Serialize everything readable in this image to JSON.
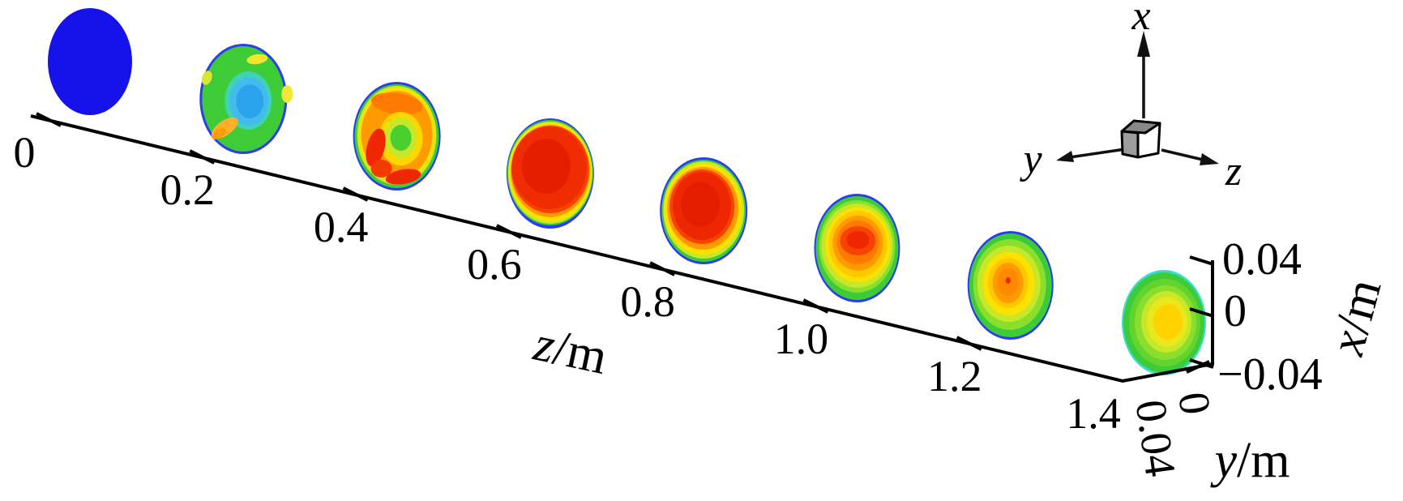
{
  "labels": {
    "z_axis": {
      "symbol": "z",
      "unit": "/m",
      "ticks": [
        "0",
        "0.2",
        "0.4",
        "0.6",
        "0.8",
        "1.0",
        "1.2",
        "1.4"
      ]
    },
    "x_axis": {
      "symbol": "x",
      "unit": "/m",
      "ticks": [
        "0.04",
        "0",
        "−0.04"
      ]
    },
    "y_axis": {
      "symbol": "y",
      "unit": "/m",
      "ticks": [
        "0",
        "0.04"
      ]
    },
    "triad": {
      "x": "x",
      "y": "y",
      "z": "z"
    }
  },
  "colors": {
    "axis": "#000000",
    "cube_top": "#878787",
    "cube_left": "#9c9c9c",
    "cube_front": "#ffffff"
  },
  "chart_data": {
    "type": "heatmap",
    "subtype": "3d-contour-cross-sections",
    "title": "",
    "colormap": "jet",
    "z_axis": {
      "label": "z/m",
      "ticks": [
        0,
        0.2,
        0.4,
        0.6,
        0.8,
        1.0,
        1.2,
        1.4
      ],
      "range": [
        0,
        1.4
      ]
    },
    "x_axis": {
      "label": "x/m",
      "ticks": [
        0.04,
        0,
        -0.04
      ],
      "range": [
        -0.04,
        0.04
      ]
    },
    "y_axis": {
      "label": "y/m",
      "ticks": [
        0,
        0.04
      ],
      "range": [
        0,
        0.04
      ]
    },
    "orientation_cube": {
      "up": "x",
      "left": "y",
      "right": "z"
    },
    "slices": [
      {
        "z": 0.0,
        "pattern": "uniform minimum (blue)",
        "rings": [
          [
            0,
            0,
            52,
            66,
            "#1512ec",
            0
          ]
        ],
        "spots": []
      },
      {
        "z": 0.2,
        "pattern": "green body, cool blue core, warm edge spots",
        "rings": [
          [
            0,
            0,
            54,
            68,
            "#2c3cf0",
            0
          ],
          [
            0,
            0,
            51,
            65,
            "#3ecb38",
            0
          ],
          [
            6,
            2,
            29,
            36,
            "#3fd2b4",
            0
          ],
          [
            7,
            3,
            24,
            30,
            "#41bced",
            0
          ],
          [
            8,
            3,
            17,
            21,
            "#2aa3ec",
            0
          ]
        ],
        "spots": [
          [
            17,
            -49,
            13,
            6,
            "#f4e42e",
            -8
          ],
          [
            54,
            -6,
            7,
            11,
            "#f0e63a",
            0
          ],
          [
            -23,
            36,
            19,
            9,
            "#ffb02a",
            -35
          ],
          [
            -30,
            43,
            10,
            5,
            "#ff9b00",
            -35
          ],
          [
            -45,
            -26,
            6,
            9,
            "#d8e830",
            20
          ]
        ]
      },
      {
        "z": 0.4,
        "pattern": "orange annulus with red patches, green core",
        "rings": [
          [
            0,
            0,
            54,
            67,
            "#2c3cf0",
            0
          ],
          [
            0,
            0,
            52,
            64,
            "#3ecb38",
            0
          ],
          [
            0,
            -1,
            49,
            61,
            "#c6e828",
            0
          ],
          [
            0,
            -2,
            47,
            58,
            "#ffe100",
            0
          ],
          [
            0,
            -2,
            44,
            54,
            "#ff9b00",
            0
          ],
          [
            0,
            -40,
            32,
            13,
            "#ff7a00",
            8
          ],
          [
            5,
            3,
            27,
            33,
            "#ffd700",
            0
          ],
          [
            5,
            2,
            20,
            25,
            "#c6e828",
            0
          ],
          [
            5,
            2,
            13,
            16,
            "#4ad02e",
            0
          ]
        ],
        "spots": [
          [
            -26,
            14,
            11,
            24,
            "#ee2702",
            14
          ],
          [
            8,
            50,
            22,
            9,
            "#ee2702",
            -10
          ],
          [
            -19,
            40,
            13,
            11,
            "#f53a00",
            0
          ]
        ]
      },
      {
        "z": 0.6,
        "pattern": "large red maximum core",
        "rings": [
          [
            0,
            0,
            54,
            68,
            "#2c3cf0",
            0
          ],
          [
            0,
            -1,
            53,
            65,
            "#3ecb38",
            0
          ],
          [
            0,
            -1,
            52,
            63,
            "#c6e828",
            0
          ],
          [
            0,
            -2,
            51,
            61,
            "#ffe100",
            0
          ],
          [
            0,
            -3,
            49,
            57,
            "#ff9b00",
            0
          ],
          [
            0,
            -5,
            48,
            54,
            "#f84300",
            0
          ],
          [
            -1,
            -7,
            46,
            51,
            "#f02d02",
            0
          ],
          [
            -5,
            -9,
            30,
            34,
            "#e61e00",
            0
          ]
        ],
        "spots": []
      },
      {
        "z": 0.8,
        "pattern": "red core, broader warm rings",
        "rings": [
          [
            0,
            0,
            54,
            66,
            "#2c3cf0",
            0
          ],
          [
            0,
            0,
            52,
            63,
            "#3ecb38",
            0
          ],
          [
            0,
            -1,
            50,
            60,
            "#c6e828",
            0
          ],
          [
            -1,
            -2,
            48,
            56,
            "#ffe100",
            0
          ],
          [
            -1,
            -3,
            44,
            51,
            "#ff9b00",
            0
          ],
          [
            -2,
            -5,
            40,
            46,
            "#f84300",
            0
          ],
          [
            -2,
            -6,
            36,
            42,
            "#ee2702",
            0
          ],
          [
            -4,
            -8,
            24,
            28,
            "#e61e00",
            0
          ]
        ],
        "spots": []
      },
      {
        "z": 1.0,
        "pattern": "small red-orange core, wide green rim",
        "rings": [
          [
            0,
            0,
            53,
            67,
            "#2c3cf0",
            0
          ],
          [
            0,
            0,
            51,
            64,
            "#3ecb38",
            0
          ],
          [
            0,
            -2,
            47,
            57,
            "#8ade2e",
            0
          ],
          [
            0,
            -3,
            44,
            52,
            "#c6e828",
            0
          ],
          [
            1,
            -4,
            40,
            46,
            "#ffe100",
            0
          ],
          [
            1,
            -5,
            36,
            41,
            "#ffc800",
            0
          ],
          [
            1,
            -6,
            31,
            34,
            "#ff9b00",
            0
          ],
          [
            1,
            -7,
            26,
            27,
            "#ff7a00",
            0
          ],
          [
            1,
            -9,
            22,
            18,
            "#f84300",
            0
          ],
          [
            1,
            -10,
            14,
            11,
            "#ee2702",
            0
          ]
        ],
        "spots": []
      },
      {
        "z": 1.2,
        "pattern": "small orange core, green body",
        "rings": [
          [
            0,
            0,
            53,
            67,
            "#2c3cf0",
            0
          ],
          [
            0,
            0,
            51,
            64,
            "#3ecb38",
            0
          ],
          [
            -1,
            -1,
            45,
            56,
            "#8ade2e",
            0
          ],
          [
            -2,
            -2,
            39,
            47,
            "#c6e828",
            0
          ],
          [
            -2,
            -2,
            32,
            39,
            "#ffe100",
            0
          ],
          [
            -3,
            -3,
            25,
            31,
            "#ffc800",
            0
          ],
          [
            -3,
            -3,
            19,
            25,
            "#ff9b00",
            0
          ],
          [
            -3,
            -4,
            13,
            17,
            "#ff8800",
            0
          ]
        ],
        "spots": [
          [
            -3,
            -6,
            3,
            4,
            "#ee2702",
            0
          ]
        ]
      },
      {
        "z": 1.4,
        "pattern": "yellow core, green body, cyan rim",
        "rings": [
          [
            0,
            0,
            52,
            65,
            "#37ddd3",
            0
          ],
          [
            0,
            0,
            50,
            62,
            "#3ecb38",
            0
          ],
          [
            1,
            0,
            44,
            54,
            "#63d42e",
            0
          ],
          [
            2,
            0,
            38,
            46,
            "#8ade2e",
            0
          ],
          [
            3,
            -1,
            31,
            38,
            "#c6e828",
            0
          ],
          [
            4,
            -1,
            25,
            31,
            "#e8e81c",
            0
          ],
          [
            5,
            -1,
            18,
            22,
            "#ffd200",
            0
          ]
        ],
        "spots": []
      }
    ]
  }
}
